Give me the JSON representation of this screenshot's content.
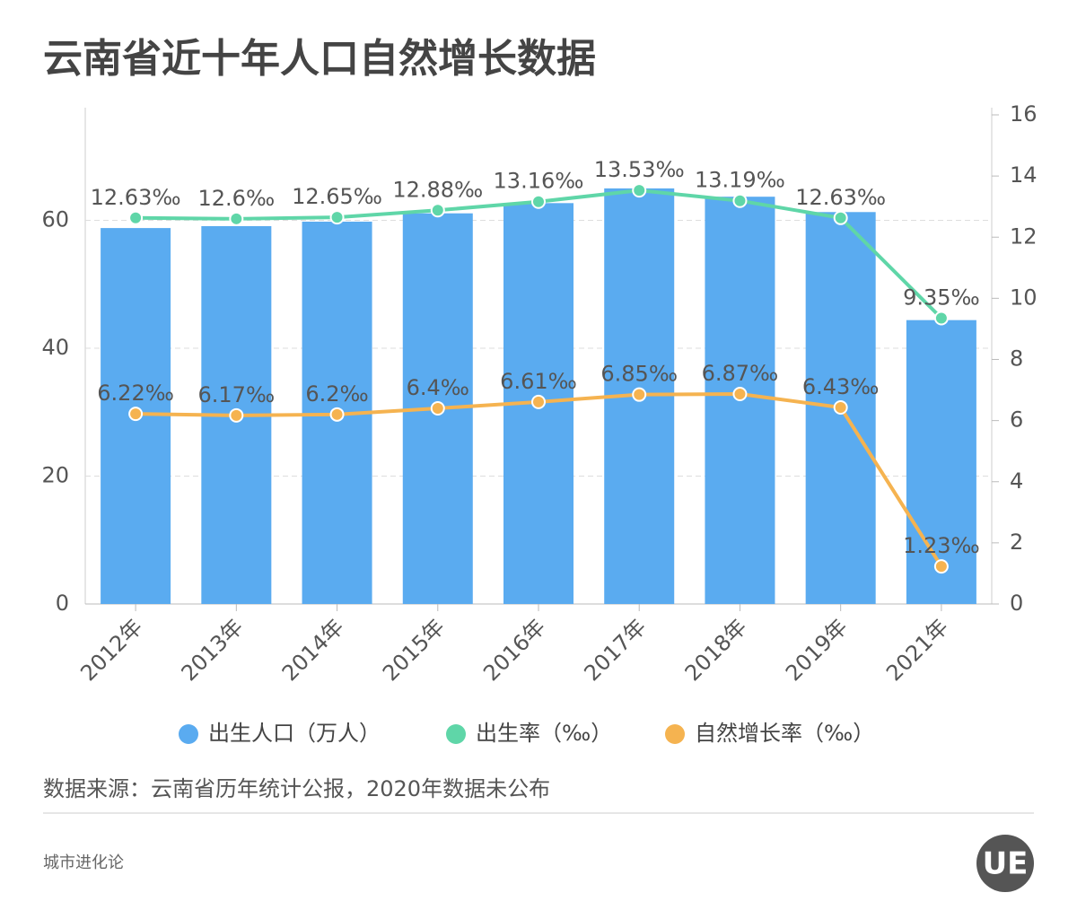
{
  "chart_data": {
    "type": "bar-line",
    "title": "云南省近十年人口自然增长数据",
    "categories": [
      "2012年",
      "2013年",
      "2014年",
      "2015年",
      "2016年",
      "2017年",
      "2018年",
      "2019年",
      "2021年"
    ],
    "series": [
      {
        "name": "出生人口（万人）",
        "type": "bar",
        "color": "#5aabf0",
        "values": [
          58.8,
          59.1,
          59.8,
          61.1,
          62.7,
          65.0,
          63.7,
          61.3,
          44.4
        ]
      },
      {
        "name": "出生率（‰）",
        "type": "line",
        "axis": "y2",
        "color": "#5fd6a8",
        "values": [
          12.63,
          12.6,
          12.65,
          12.88,
          13.16,
          13.53,
          13.19,
          12.63,
          9.35
        ],
        "value_labels": [
          "12.63‰",
          "12.6‰",
          "12.65‰",
          "12.88‰",
          "13.16‰",
          "13.53‰",
          "13.19‰",
          "12.63‰",
          "9.35‰"
        ]
      },
      {
        "name": "自然增长率（‰）",
        "type": "line",
        "axis": "y2",
        "color": "#f5b350",
        "values": [
          6.22,
          6.17,
          6.2,
          6.4,
          6.61,
          6.85,
          6.87,
          6.43,
          1.23
        ],
        "value_labels": [
          "6.22‰",
          "6.17‰",
          "6.2‰",
          "6.4‰",
          "6.61‰",
          "6.85‰",
          "6.87‰",
          "6.43‰",
          "1.23‰"
        ]
      }
    ],
    "ylim": [
      0,
      76.5
    ],
    "yticks": [
      0,
      20,
      40,
      60
    ],
    "y2lim": [
      0,
      16
    ],
    "y2ticks": [
      0,
      2,
      4,
      6,
      8,
      10,
      12,
      14,
      16
    ],
    "grid": true,
    "source": "数据来源：云南省历年统计公报，2020年数据未公布",
    "footer": "城市进化论",
    "logo": "UE"
  }
}
